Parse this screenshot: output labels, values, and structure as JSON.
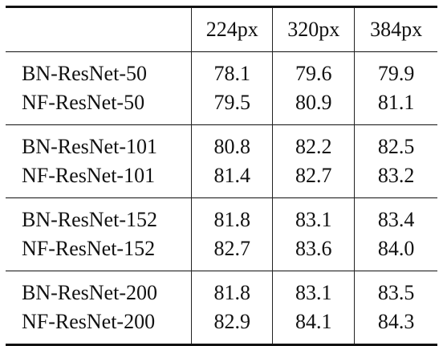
{
  "table": {
    "columns": [
      "",
      "224px",
      "320px",
      "384px"
    ],
    "groups": [
      {
        "rows": [
          {
            "name": "BN-ResNet-50",
            "values": [
              "78.1",
              "79.6",
              "79.9"
            ],
            "bold": false
          },
          {
            "name": "NF-ResNet-50",
            "values": [
              "79.5",
              "80.9",
              "81.1"
            ],
            "bold": true
          }
        ]
      },
      {
        "rows": [
          {
            "name": "BN-ResNet-101",
            "values": [
              "80.8",
              "82.2",
              "82.5"
            ],
            "bold": false
          },
          {
            "name": "NF-ResNet-101",
            "values": [
              "81.4",
              "82.7",
              "83.2"
            ],
            "bold": true
          }
        ]
      },
      {
        "rows": [
          {
            "name": "BN-ResNet-152",
            "values": [
              "81.8",
              "83.1",
              "83.4"
            ],
            "bold": false
          },
          {
            "name": "NF-ResNet-152",
            "values": [
              "82.7",
              "83.6",
              "84.0"
            ],
            "bold": true
          }
        ]
      },
      {
        "rows": [
          {
            "name": "BN-ResNet-200",
            "values": [
              "81.8",
              "83.1",
              "83.5"
            ],
            "bold": false
          },
          {
            "name": "NF-ResNet-200",
            "values": [
              "82.9",
              "84.1",
              "84.3"
            ],
            "bold": true
          }
        ]
      }
    ]
  }
}
